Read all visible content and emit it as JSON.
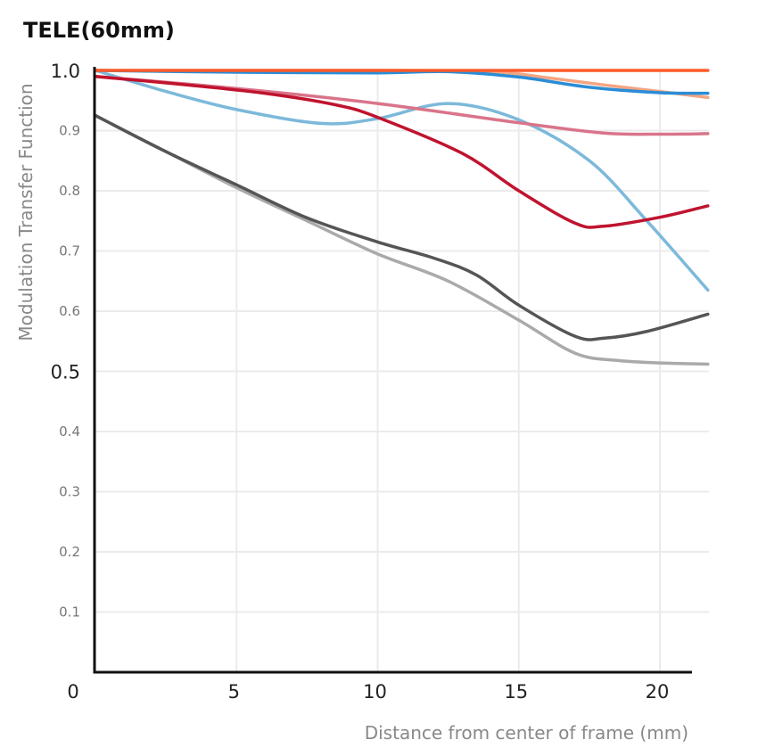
{
  "chart_data": {
    "type": "line",
    "title": "TELE(60mm)",
    "xlabel": "Distance from center of frame (mm)",
    "ylabel": "Modulation Transfer Function",
    "xlim": [
      0,
      21.7
    ],
    "ylim": [
      0,
      1.0
    ],
    "grid": true,
    "legend": "none",
    "x_ticks": [
      {
        "value": 0,
        "label": "0"
      },
      {
        "value": 5,
        "label": "5"
      },
      {
        "value": 10,
        "label": "10"
      },
      {
        "value": 15,
        "label": "15"
      },
      {
        "value": 20,
        "label": "20"
      }
    ],
    "y_ticks": [
      {
        "value": 1.0,
        "label": "1.0",
        "major": true
      },
      {
        "value": 0.9,
        "label": "0.9",
        "major": false
      },
      {
        "value": 0.8,
        "label": "0.8",
        "major": false
      },
      {
        "value": 0.7,
        "label": "0.7",
        "major": false
      },
      {
        "value": 0.6,
        "label": "0.6",
        "major": false
      },
      {
        "value": 0.5,
        "label": "0.5",
        "major": true
      },
      {
        "value": 0.4,
        "label": "0.4",
        "major": false
      },
      {
        "value": 0.3,
        "label": "0.3",
        "major": false
      },
      {
        "value": 0.2,
        "label": "0.2",
        "major": false
      },
      {
        "value": 0.1,
        "label": "0.1",
        "major": false
      }
    ],
    "series": [
      {
        "name": "light-gray",
        "color": "#AAAAAA",
        "x": [
          0,
          2.5,
          5,
          7.5,
          10,
          12.5,
          15,
          17,
          18.5,
          20,
          21.7
        ],
        "y": [
          0.925,
          0.865,
          0.805,
          0.75,
          0.695,
          0.65,
          0.585,
          0.53,
          0.518,
          0.514,
          0.512
        ]
      },
      {
        "name": "dark-gray",
        "color": "#555555",
        "x": [
          0,
          2.5,
          5,
          7.5,
          10,
          12,
          13.5,
          15,
          17,
          18,
          19.5,
          21.7
        ],
        "y": [
          0.925,
          0.865,
          0.81,
          0.755,
          0.715,
          0.688,
          0.66,
          0.61,
          0.558,
          0.555,
          0.566,
          0.595
        ]
      },
      {
        "name": "light-blue",
        "color": "#7CB9DA",
        "x": [
          0,
          2.5,
          5,
          8,
          10,
          12.5,
          15,
          17.5,
          19.5,
          21.7
        ],
        "y": [
          1.0,
          0.965,
          0.935,
          0.912,
          0.92,
          0.945,
          0.918,
          0.85,
          0.752,
          0.635
        ]
      },
      {
        "name": "pink",
        "color": "#D9748A",
        "x": [
          0,
          5,
          10,
          15,
          18,
          20,
          21.7
        ],
        "y": [
          0.99,
          0.97,
          0.945,
          0.913,
          0.896,
          0.894,
          0.895
        ]
      },
      {
        "name": "dark-red",
        "color": "#C0132F",
        "x": [
          0,
          3,
          6,
          8.5,
          10,
          13,
          15,
          17,
          18,
          20,
          21.7
        ],
        "y": [
          0.99,
          0.977,
          0.962,
          0.943,
          0.922,
          0.862,
          0.8,
          0.746,
          0.741,
          0.756,
          0.775
        ]
      },
      {
        "name": "salmon",
        "color": "#F4A582",
        "x": [
          0,
          5,
          10,
          14,
          16,
          18,
          20,
          21.7
        ],
        "y": [
          1.0,
          1.0,
          1.0,
          0.998,
          0.988,
          0.976,
          0.965,
          0.955
        ]
      },
      {
        "name": "blue",
        "color": "#2B8CD6",
        "x": [
          0,
          5,
          10,
          12.5,
          15,
          17.5,
          20,
          21.7
        ],
        "y": [
          1.0,
          0.997,
          0.996,
          0.998,
          0.989,
          0.972,
          0.963,
          0.962
        ]
      },
      {
        "name": "orange",
        "color": "#FF5B2A",
        "x": [
          0,
          5,
          10,
          15,
          20,
          21.7
        ],
        "y": [
          1.0,
          1.0,
          1.0,
          1.0,
          1.0,
          1.0
        ]
      }
    ]
  }
}
